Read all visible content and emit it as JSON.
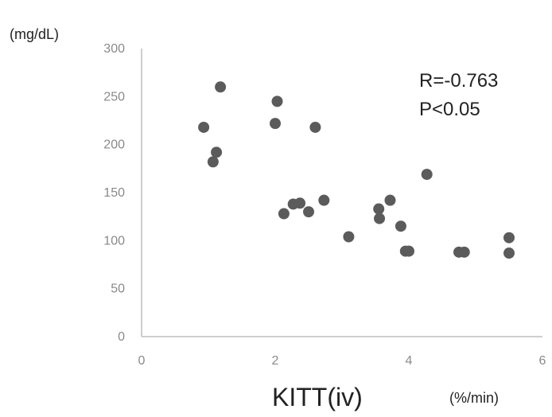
{
  "chart_data": {
    "type": "scatter",
    "title": "",
    "xlabel": "KITT(iv)",
    "x_unit": "(%/min)",
    "y_unit": "(mg/dL)",
    "ylabel": "",
    "xlim": [
      0,
      6
    ],
    "ylim": [
      0,
      300
    ],
    "x_ticks": [
      "0",
      "2",
      "4",
      "6"
    ],
    "y_ticks": [
      "300",
      "250",
      "200",
      "150",
      "100",
      "50",
      "0"
    ],
    "grid": false,
    "marker_color": "#5b5b5b",
    "axis_color": "#bdbdbd",
    "annotations": [
      "R=-0.763",
      "P<0.05"
    ],
    "series": [
      {
        "x": [
          0.93,
          1.07,
          1.12,
          1.18,
          2.0,
          2.03,
          2.13,
          2.27,
          2.37,
          2.5,
          2.6,
          2.73,
          3.1,
          3.55,
          3.56,
          3.72,
          3.88,
          3.95,
          4.0,
          4.27,
          4.75,
          4.83,
          5.5,
          5.5
        ],
        "y": [
          218,
          182,
          192,
          260,
          222,
          245,
          128,
          138,
          139,
          130,
          218,
          142,
          104,
          133,
          123,
          142,
          115,
          89,
          89,
          169,
          88,
          88,
          103,
          87
        ]
      }
    ]
  }
}
